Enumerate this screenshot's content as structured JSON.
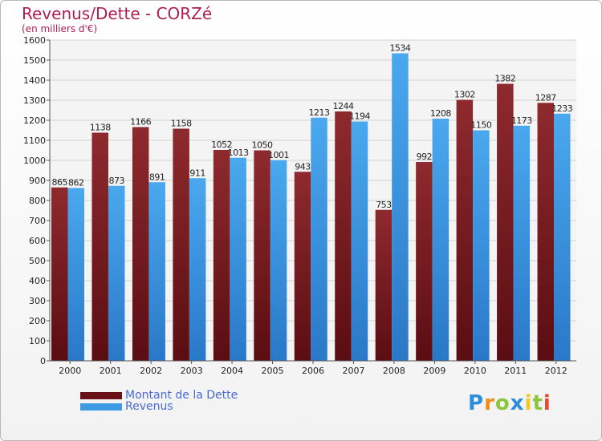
{
  "header": {
    "title": "Revenus/Dette - CORZé",
    "subtitle": "(en milliers d'€)"
  },
  "logo": {
    "text": "Proxiti",
    "letters": [
      {
        "ch": "P",
        "color": "#2a8fd8"
      },
      {
        "ch": "r",
        "color": "#f28c1c"
      },
      {
        "ch": "o",
        "color": "#8cc63e"
      },
      {
        "ch": "x",
        "color": "#2a8fd8"
      },
      {
        "ch": "i",
        "color": "#f2c81c"
      },
      {
        "ch": "t",
        "color": "#8cc63e"
      },
      {
        "ch": "i",
        "color": "#e64a2e"
      }
    ]
  },
  "chart_data": {
    "type": "bar",
    "title": "Revenus/Dette - CORZé",
    "subtitle": "(en milliers d'€)",
    "categories": [
      "2000",
      "2001",
      "2002",
      "2003",
      "2004",
      "2005",
      "2006",
      "2007",
      "2008",
      "2009",
      "2010",
      "2011",
      "2012"
    ],
    "series": [
      {
        "name": "Montant de la Dette",
        "color": "#8a1f25",
        "values": [
          865,
          1138,
          1166,
          1158,
          1052,
          1050,
          943,
          1244,
          753,
          992,
          1302,
          1382,
          1287
        ]
      },
      {
        "name": "Revenus",
        "color": "#3d9be3",
        "values": [
          862,
          873,
          891,
          911,
          1013,
          1001,
          1213,
          1194,
          1534,
          1208,
          1150,
          1173,
          1233
        ]
      }
    ],
    "ylim": [
      0,
      1600
    ],
    "yticks": [
      0,
      100,
      200,
      300,
      400,
      500,
      600,
      700,
      800,
      900,
      1000,
      1100,
      1200,
      1300,
      1400,
      1500,
      1600
    ],
    "grid": true,
    "legend": "bottom-left"
  }
}
